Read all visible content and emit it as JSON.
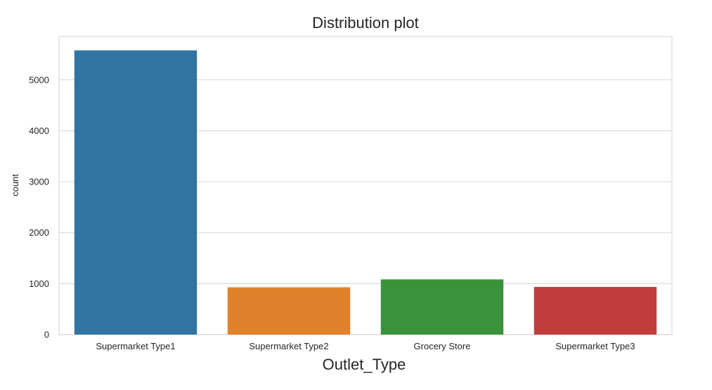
{
  "chart_data": {
    "type": "bar",
    "title": "Distribution plot",
    "xlabel": "Outlet_Type",
    "ylabel": "count",
    "categories": [
      "Supermarket Type1",
      "Supermarket Type2",
      "Grocery Store",
      "Supermarket Type3"
    ],
    "values": [
      5577,
      928,
      1083,
      935
    ],
    "colors": [
      "#3274a1",
      "#e1812c",
      "#3a923a",
      "#c03d3e"
    ],
    "ylim": [
      0,
      5850
    ],
    "yticks": [
      0,
      1000,
      2000,
      3000,
      4000,
      5000
    ],
    "grid": true,
    "legend": "none"
  }
}
